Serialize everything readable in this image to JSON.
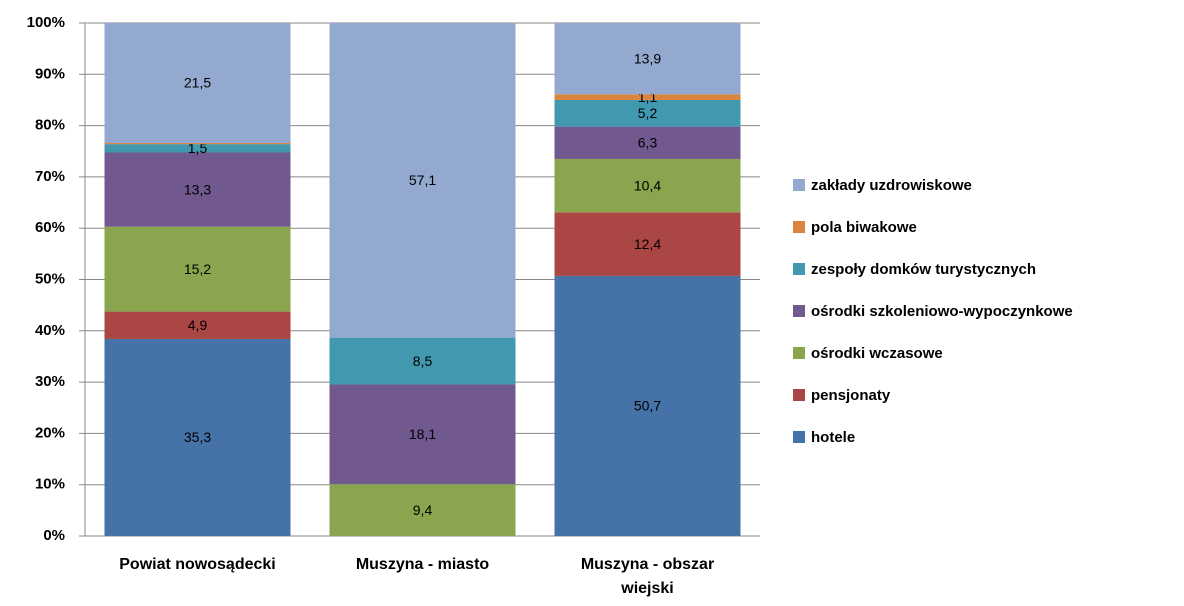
{
  "chart_data": {
    "type": "bar",
    "stacking": "percent",
    "categories": [
      "Powiat nowosądecki",
      "Muszyna - miasto",
      "Muszyna - obszar wiejski"
    ],
    "series": [
      {
        "name": "hotele",
        "color": "#4572a7",
        "values": [
          35.3,
          null,
          50.7
        ],
        "value_labels": [
          "35,3",
          null,
          "50,7"
        ]
      },
      {
        "name": "pensjonaty",
        "color": "#aa4643",
        "values": [
          4.9,
          null,
          12.4
        ],
        "value_labels": [
          "4,9",
          null,
          "12,4"
        ]
      },
      {
        "name": "ośrodki wczasowe",
        "color": "#89a54e",
        "values": [
          15.2,
          9.4,
          10.4
        ],
        "value_labels": [
          "15,2",
          "9,4",
          "10,4"
        ]
      },
      {
        "name": "ośrodki szkoleniowo-wypoczynkowe",
        "color": "#71588f",
        "values": [
          13.3,
          18.1,
          6.3
        ],
        "value_labels": [
          "13,3",
          "18,1",
          "6,3"
        ]
      },
      {
        "name": "zespoły domków turystycznych",
        "color": "#4198af",
        "values": [
          1.5,
          8.5,
          5.2
        ],
        "value_labels": [
          "1,5",
          "8,5",
          "5,2"
        ]
      },
      {
        "name": "pola biwakowe",
        "color": "#db843d",
        "values": [
          0.2,
          null,
          1.1
        ],
        "value_labels": [
          null,
          null,
          "1,1"
        ]
      },
      {
        "name": "zakłady uzdrowiskowe",
        "color": "#93a9cf",
        "values": [
          21.5,
          57.1,
          13.9
        ],
        "value_labels": [
          "21,5",
          "57,1",
          "13,9"
        ]
      }
    ],
    "ylim": [
      0,
      100
    ],
    "yticks": [
      {
        "value": 0,
        "label": "0%"
      },
      {
        "value": 10,
        "label": "10%"
      },
      {
        "value": 20,
        "label": "20%"
      },
      {
        "value": 30,
        "label": "30%"
      },
      {
        "value": 40,
        "label": "40%"
      },
      {
        "value": 50,
        "label": "50%"
      },
      {
        "value": 60,
        "label": "60%"
      },
      {
        "value": 70,
        "label": "70%"
      },
      {
        "value": 80,
        "label": "80%"
      },
      {
        "value": 90,
        "label": "90%"
      },
      {
        "value": 100,
        "label": "100%"
      }
    ],
    "grid": true,
    "legend": "right"
  }
}
